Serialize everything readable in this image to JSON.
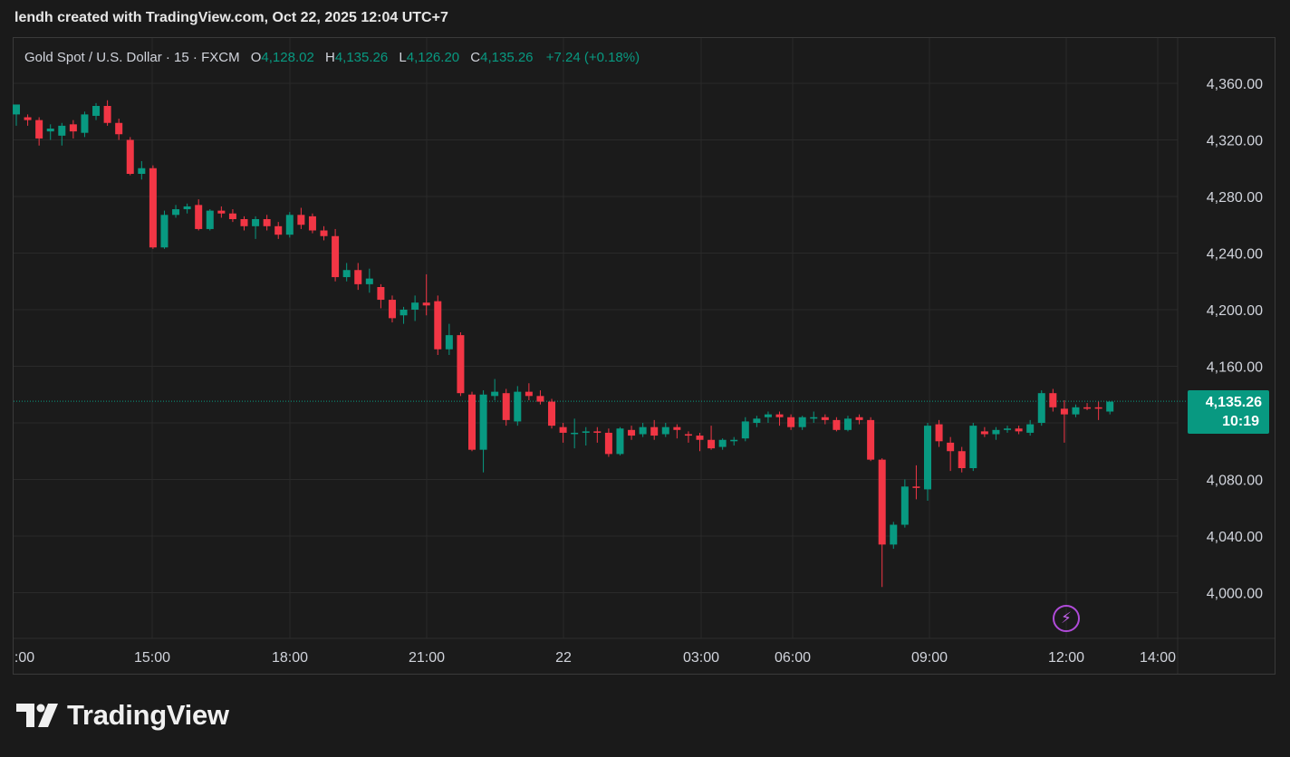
{
  "caption": "lendh created with TradingView.com, Oct 22, 2025 12:04 UTC+7",
  "brand": {
    "name": "TradingView"
  },
  "legend": {
    "symbol": "Gold Spot / U.S. Dollar · 15 · FXCM",
    "open_key": "O",
    "open": "4,128.02",
    "high_key": "H",
    "high": "4,135.26",
    "low_key": "L",
    "low": "4,126.20",
    "close_key": "C",
    "close": "4,135.26",
    "change": "+7.24 (+0.18%)"
  },
  "price_tag": {
    "price": "4,135.26",
    "countdown": "10:19"
  },
  "icons": {
    "alert": "lightning-icon",
    "logo": "tradingview-logo-icon"
  },
  "colors": {
    "up": "#089981",
    "down": "#f23645",
    "background": "#1a1a1a",
    "grid": "#2a2a2a",
    "text": "#d1d4dc",
    "alert": "#b04bd9"
  },
  "chart_data": {
    "type": "candlestick",
    "interval": "15",
    "grid": true,
    "y_axis": {
      "position": "right",
      "ticks": [
        4360,
        4320,
        4280,
        4240,
        4200,
        4160,
        4080,
        4040,
        4000
      ],
      "tick_labels": [
        "4,360.00",
        "4,320.00",
        "4,280.00",
        "4,240.00",
        "4,200.00",
        "4,160.00",
        "4,080.00",
        "4,040.00",
        "4,000.00"
      ],
      "range": [
        3964,
        4382
      ]
    },
    "x_axis": {
      "tick_labels": [
        ":00",
        "15:00",
        "18:00",
        "21:00",
        "22",
        "03:00",
        "06:00",
        "09:00",
        "12:00",
        "14:00"
      ]
    },
    "last_price": 4135.26,
    "candles": [
      {
        "o": 4338,
        "h": 4345,
        "l": 4330,
        "c": 4345
      },
      {
        "o": 4336,
        "h": 4338,
        "l": 4330,
        "c": 4334
      },
      {
        "o": 4334,
        "h": 4336,
        "l": 4316,
        "c": 4321
      },
      {
        "o": 4326,
        "h": 4331,
        "l": 4320,
        "c": 4328
      },
      {
        "o": 4323,
        "h": 4332,
        "l": 4316,
        "c": 4330
      },
      {
        "o": 4331,
        "h": 4334,
        "l": 4321,
        "c": 4326
      },
      {
        "o": 4325,
        "h": 4340,
        "l": 4322,
        "c": 4338
      },
      {
        "o": 4337,
        "h": 4346,
        "l": 4334,
        "c": 4344
      },
      {
        "o": 4344,
        "h": 4348,
        "l": 4330,
        "c": 4332
      },
      {
        "o": 4332,
        "h": 4335,
        "l": 4320,
        "c": 4324
      },
      {
        "o": 4320,
        "h": 4322,
        "l": 4295,
        "c": 4296
      },
      {
        "o": 4296,
        "h": 4305,
        "l": 4292,
        "c": 4300
      },
      {
        "o": 4300,
        "h": 4302,
        "l": 4243,
        "c": 4244
      },
      {
        "o": 4244,
        "h": 4270,
        "l": 4243,
        "c": 4267
      },
      {
        "o": 4267,
        "h": 4274,
        "l": 4265,
        "c": 4271
      },
      {
        "o": 4271,
        "h": 4275,
        "l": 4268,
        "c": 4273
      },
      {
        "o": 4274,
        "h": 4278,
        "l": 4256,
        "c": 4257
      },
      {
        "o": 4257,
        "h": 4271,
        "l": 4256,
        "c": 4270
      },
      {
        "o": 4270,
        "h": 4273,
        "l": 4265,
        "c": 4268
      },
      {
        "o": 4268,
        "h": 4271,
        "l": 4262,
        "c": 4264
      },
      {
        "o": 4264,
        "h": 4266,
        "l": 4256,
        "c": 4259
      },
      {
        "o": 4259,
        "h": 4266,
        "l": 4250,
        "c": 4264
      },
      {
        "o": 4264,
        "h": 4267,
        "l": 4256,
        "c": 4259
      },
      {
        "o": 4259,
        "h": 4262,
        "l": 4250,
        "c": 4253
      },
      {
        "o": 4253,
        "h": 4269,
        "l": 4251,
        "c": 4267
      },
      {
        "o": 4267,
        "h": 4272,
        "l": 4257,
        "c": 4260
      },
      {
        "o": 4266,
        "h": 4268,
        "l": 4254,
        "c": 4256
      },
      {
        "o": 4256,
        "h": 4259,
        "l": 4249,
        "c": 4252
      },
      {
        "o": 4252,
        "h": 4257,
        "l": 4220,
        "c": 4223
      },
      {
        "o": 4223,
        "h": 4233,
        "l": 4220,
        "c": 4228
      },
      {
        "o": 4228,
        "h": 4233,
        "l": 4214,
        "c": 4218
      },
      {
        "o": 4218,
        "h": 4229,
        "l": 4212,
        "c": 4222
      },
      {
        "o": 4216,
        "h": 4218,
        "l": 4201,
        "c": 4207
      },
      {
        "o": 4207,
        "h": 4210,
        "l": 4191,
        "c": 4194
      },
      {
        "o": 4196,
        "h": 4202,
        "l": 4190,
        "c": 4200
      },
      {
        "o": 4200,
        "h": 4210,
        "l": 4192,
        "c": 4205
      },
      {
        "o": 4205,
        "h": 4225,
        "l": 4196,
        "c": 4203
      },
      {
        "o": 4206,
        "h": 4210,
        "l": 4168,
        "c": 4172
      },
      {
        "o": 4172,
        "h": 4190,
        "l": 4168,
        "c": 4182
      },
      {
        "o": 4182,
        "h": 4184,
        "l": 4139,
        "c": 4141
      },
      {
        "o": 4140,
        "h": 4142,
        "l": 4100,
        "c": 4101
      },
      {
        "o": 4101,
        "h": 4143,
        "l": 4085,
        "c": 4140
      },
      {
        "o": 4139,
        "h": 4151,
        "l": 4136,
        "c": 4142
      },
      {
        "o": 4141,
        "h": 4144,
        "l": 4118,
        "c": 4122
      },
      {
        "o": 4121,
        "h": 4146,
        "l": 4118,
        "c": 4142
      },
      {
        "o": 4142,
        "h": 4148,
        "l": 4136,
        "c": 4139
      },
      {
        "o": 4139,
        "h": 4143,
        "l": 4133,
        "c": 4135
      },
      {
        "o": 4135,
        "h": 4137,
        "l": 4116,
        "c": 4118
      },
      {
        "o": 4117,
        "h": 4120,
        "l": 4106,
        "c": 4113
      },
      {
        "o": 4113,
        "h": 4123,
        "l": 4102,
        "c": 4113
      },
      {
        "o": 4113,
        "h": 4117,
        "l": 4104,
        "c": 4114
      },
      {
        "o": 4114,
        "h": 4117,
        "l": 4106,
        "c": 4113
      },
      {
        "o": 4113,
        "h": 4116,
        "l": 4096,
        "c": 4098
      },
      {
        "o": 4098,
        "h": 4117,
        "l": 4097,
        "c": 4116
      },
      {
        "o": 4115,
        "h": 4118,
        "l": 4108,
        "c": 4111
      },
      {
        "o": 4112,
        "h": 4120,
        "l": 4110,
        "c": 4117
      },
      {
        "o": 4117,
        "h": 4122,
        "l": 4108,
        "c": 4111
      },
      {
        "o": 4112,
        "h": 4120,
        "l": 4110,
        "c": 4117
      },
      {
        "o": 4117,
        "h": 4119,
        "l": 4109,
        "c": 4115
      },
      {
        "o": 4112,
        "h": 4114,
        "l": 4106,
        "c": 4111
      },
      {
        "o": 4111,
        "h": 4113,
        "l": 4100,
        "c": 4108
      },
      {
        "o": 4108,
        "h": 4118,
        "l": 4101,
        "c": 4102
      },
      {
        "o": 4103,
        "h": 4109,
        "l": 4101,
        "c": 4108
      },
      {
        "o": 4107,
        "h": 4110,
        "l": 4104,
        "c": 4108
      },
      {
        "o": 4109,
        "h": 4124,
        "l": 4107,
        "c": 4121
      },
      {
        "o": 4120,
        "h": 4125,
        "l": 4117,
        "c": 4123
      },
      {
        "o": 4124,
        "h": 4128,
        "l": 4120,
        "c": 4126
      },
      {
        "o": 4126,
        "h": 4128,
        "l": 4118,
        "c": 4124
      },
      {
        "o": 4124,
        "h": 4126,
        "l": 4115,
        "c": 4117
      },
      {
        "o": 4117,
        "h": 4125,
        "l": 4115,
        "c": 4124
      },
      {
        "o": 4123,
        "h": 4128,
        "l": 4120,
        "c": 4124
      },
      {
        "o": 4124,
        "h": 4126,
        "l": 4119,
        "c": 4122
      },
      {
        "o": 4122,
        "h": 4124,
        "l": 4114,
        "c": 4115
      },
      {
        "o": 4115,
        "h": 4125,
        "l": 4114,
        "c": 4123
      },
      {
        "o": 4124,
        "h": 4126,
        "l": 4119,
        "c": 4122
      },
      {
        "o": 4122,
        "h": 4124,
        "l": 4093,
        "c": 4094
      },
      {
        "o": 4094,
        "h": 4095,
        "l": 4004,
        "c": 4034
      },
      {
        "o": 4034,
        "h": 4050,
        "l": 4031,
        "c": 4048
      },
      {
        "o": 4048,
        "h": 4080,
        "l": 4046,
        "c": 4075
      },
      {
        "o": 4075,
        "h": 4090,
        "l": 4066,
        "c": 4074
      },
      {
        "o": 4073,
        "h": 4120,
        "l": 4065,
        "c": 4118
      },
      {
        "o": 4119,
        "h": 4122,
        "l": 4103,
        "c": 4107
      },
      {
        "o": 4106,
        "h": 4110,
        "l": 4086,
        "c": 4100
      },
      {
        "o": 4100,
        "h": 4103,
        "l": 4085,
        "c": 4088
      },
      {
        "o": 4088,
        "h": 4120,
        "l": 4086,
        "c": 4118
      },
      {
        "o": 4114,
        "h": 4117,
        "l": 4110,
        "c": 4112
      },
      {
        "o": 4112,
        "h": 4117,
        "l": 4108,
        "c": 4115
      },
      {
        "o": 4115,
        "h": 4118,
        "l": 4113,
        "c": 4116
      },
      {
        "o": 4116,
        "h": 4118,
        "l": 4112,
        "c": 4114
      },
      {
        "o": 4113,
        "h": 4122,
        "l": 4111,
        "c": 4119
      },
      {
        "o": 4120,
        "h": 4143,
        "l": 4118,
        "c": 4141
      },
      {
        "o": 4141,
        "h": 4144,
        "l": 4128,
        "c": 4131
      },
      {
        "o": 4130,
        "h": 4136,
        "l": 4106,
        "c": 4126
      },
      {
        "o": 4126,
        "h": 4133,
        "l": 4124,
        "c": 4131
      },
      {
        "o": 4131,
        "h": 4134,
        "l": 4129,
        "c": 4130
      },
      {
        "o": 4131,
        "h": 4135,
        "l": 4122,
        "c": 4130
      },
      {
        "o": 4128,
        "h": 4135,
        "l": 4126,
        "c": 4135
      }
    ]
  }
}
